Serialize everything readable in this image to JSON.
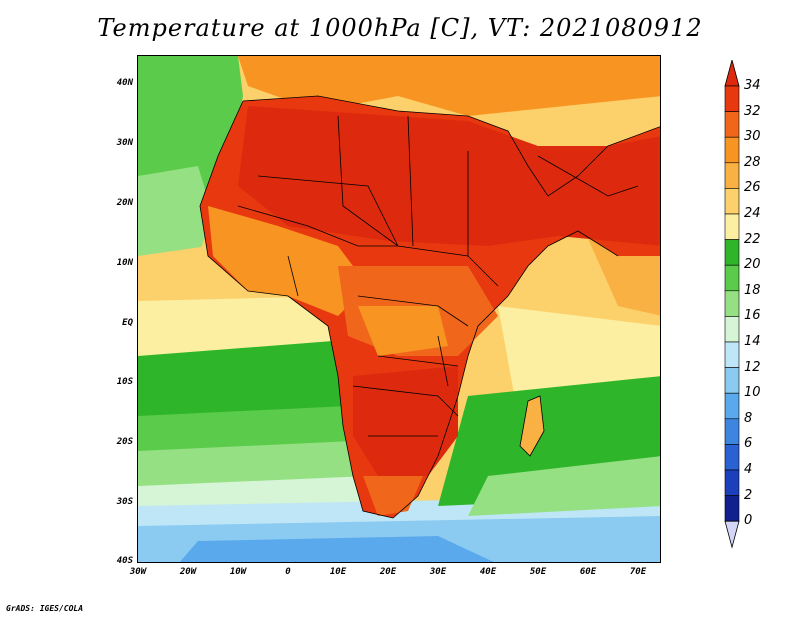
{
  "title": "Temperature at 1000hPa [C], VT: 2021080912",
  "credit": "GrADS: IGES/COLA",
  "map": {
    "variable": "Temperature at 1000hPa",
    "units": "C",
    "lat_labels": [
      "40N",
      "30N",
      "20N",
      "10N",
      "EQ",
      "10S",
      "20S",
      "30S",
      "40S"
    ],
    "lon_labels": [
      "30W",
      "20W",
      "10W",
      "0",
      "10E",
      "20E",
      "30E",
      "40E",
      "50E",
      "60E",
      "70E"
    ]
  },
  "colorbar": {
    "labels": [
      "34",
      "32",
      "30",
      "28",
      "26",
      "24",
      "22",
      "20",
      "18",
      "16",
      "14",
      "12",
      "10",
      "8",
      "6",
      "4",
      "2",
      "0"
    ],
    "colors": [
      "#dd2a0e",
      "#e8380f",
      "#f0661b",
      "#f79422",
      "#f9b143",
      "#fcd06a",
      "#fcefa1",
      "#2fb52a",
      "#5acb4a",
      "#94e083",
      "#d6f4d6",
      "#bfe6f7",
      "#8ccbf1",
      "#5aa9ec",
      "#3d86e0",
      "#2a62d4",
      "#1c3fbc",
      "#10208f",
      "#d5d5f7"
    ]
  }
}
